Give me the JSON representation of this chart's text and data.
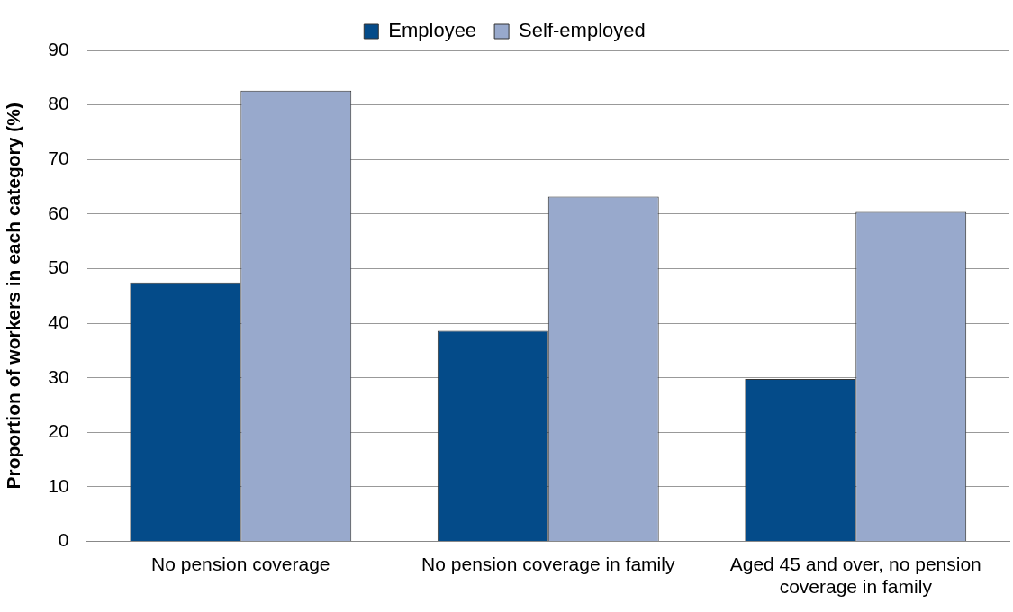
{
  "chart_data": {
    "type": "bar",
    "ylabel": "Proportion of workers in each category (%)",
    "categories": [
      "No pension coverage",
      "No pension coverage in family",
      "Aged 45 and over, no pension coverage in family"
    ],
    "series": [
      {
        "name": "Employee",
        "color": "#044b89",
        "values": [
          47.5,
          38.6,
          29.8
        ]
      },
      {
        "name": "Self-employed",
        "color": "#98a9cc",
        "values": [
          82.6,
          63.2,
          60.4
        ]
      }
    ],
    "ylim": [
      0,
      90
    ],
    "yticks": [
      0,
      10,
      20,
      30,
      40,
      50,
      60,
      70,
      80,
      90
    ],
    "grid": "y",
    "legend": "top"
  }
}
